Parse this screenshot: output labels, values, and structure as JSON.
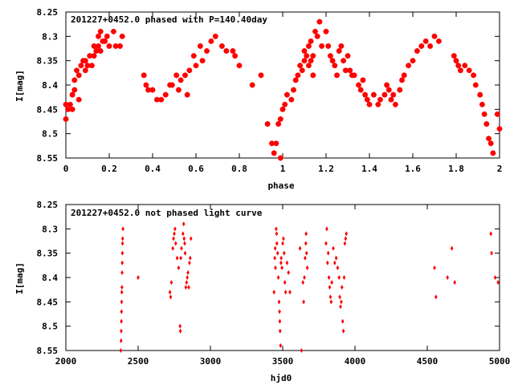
{
  "chart_data": [
    {
      "type": "scatter",
      "title": "201227+0452.0 phased with P=140.40day",
      "xlabel": "phase",
      "ylabel": "I[mag]",
      "xlim": [
        0,
        2
      ],
      "ylim": [
        8.25,
        8.55
      ],
      "y_inverted": true,
      "grid": false,
      "marker": "star",
      "color": "#ff0000",
      "xticks": [
        "0",
        "0.2",
        "0.4",
        "0.6",
        "0.8",
        "1",
        "1.2",
        "1.4",
        "1.6",
        "1.8",
        "2"
      ],
      "yticks": [
        "8.25",
        "8.3",
        "8.35",
        "8.4",
        "8.45",
        "8.5",
        "8.55"
      ],
      "points": [
        [
          0.0,
          8.44
        ],
        [
          0.0,
          8.47
        ],
        [
          0.01,
          8.45
        ],
        [
          0.02,
          8.44
        ],
        [
          0.03,
          8.45
        ],
        [
          0.03,
          8.42
        ],
        [
          0.04,
          8.41
        ],
        [
          0.04,
          8.39
        ],
        [
          0.05,
          8.37
        ],
        [
          0.06,
          8.43
        ],
        [
          0.06,
          8.38
        ],
        [
          0.07,
          8.36
        ],
        [
          0.08,
          8.35
        ],
        [
          0.09,
          8.37
        ],
        [
          0.09,
          8.35
        ],
        [
          0.1,
          8.36
        ],
        [
          0.11,
          8.34
        ],
        [
          0.12,
          8.36
        ],
        [
          0.13,
          8.32
        ],
        [
          0.13,
          8.34
        ],
        [
          0.14,
          8.33
        ],
        [
          0.15,
          8.3
        ],
        [
          0.15,
          8.32
        ],
        [
          0.16,
          8.29
        ],
        [
          0.16,
          8.33
        ],
        [
          0.17,
          8.31
        ],
        [
          0.18,
          8.31
        ],
        [
          0.19,
          8.3
        ],
        [
          0.2,
          8.32
        ],
        [
          0.22,
          8.29
        ],
        [
          0.23,
          8.32
        ],
        [
          0.25,
          8.32
        ],
        [
          0.26,
          8.3
        ],
        [
          0.36,
          8.38
        ],
        [
          0.37,
          8.4
        ],
        [
          0.38,
          8.41
        ],
        [
          0.4,
          8.41
        ],
        [
          0.42,
          8.43
        ],
        [
          0.44,
          8.43
        ],
        [
          0.46,
          8.42
        ],
        [
          0.48,
          8.4
        ],
        [
          0.49,
          8.4
        ],
        [
          0.51,
          8.38
        ],
        [
          0.52,
          8.41
        ],
        [
          0.53,
          8.39
        ],
        [
          0.55,
          8.38
        ],
        [
          0.56,
          8.42
        ],
        [
          0.57,
          8.37
        ],
        [
          0.59,
          8.34
        ],
        [
          0.6,
          8.36
        ],
        [
          0.62,
          8.32
        ],
        [
          0.63,
          8.35
        ],
        [
          0.65,
          8.33
        ],
        [
          0.67,
          8.31
        ],
        [
          0.69,
          8.3
        ],
        [
          0.72,
          8.32
        ],
        [
          0.74,
          8.33
        ],
        [
          0.77,
          8.33
        ],
        [
          0.78,
          8.34
        ],
        [
          0.8,
          8.36
        ],
        [
          0.86,
          8.4
        ],
        [
          0.9,
          8.38
        ],
        [
          0.93,
          8.48
        ],
        [
          0.95,
          8.52
        ],
        [
          0.96,
          8.54
        ],
        [
          0.97,
          8.52
        ],
        [
          0.98,
          8.48
        ],
        [
          0.99,
          8.47
        ],
        [
          0.99,
          8.55
        ],
        [
          1.0,
          8.45
        ],
        [
          1.01,
          8.44
        ],
        [
          1.02,
          8.42
        ],
        [
          1.04,
          8.43
        ],
        [
          1.05,
          8.41
        ],
        [
          1.06,
          8.39
        ],
        [
          1.07,
          8.38
        ],
        [
          1.08,
          8.36
        ],
        [
          1.09,
          8.37
        ],
        [
          1.1,
          8.35
        ],
        [
          1.1,
          8.33
        ],
        [
          1.11,
          8.34
        ],
        [
          1.12,
          8.32
        ],
        [
          1.12,
          8.36
        ],
        [
          1.13,
          8.31
        ],
        [
          1.13,
          8.35
        ],
        [
          1.14,
          8.34
        ],
        [
          1.14,
          8.38
        ],
        [
          1.15,
          8.29
        ],
        [
          1.16,
          8.3
        ],
        [
          1.17,
          8.27
        ],
        [
          1.18,
          8.32
        ],
        [
          1.2,
          8.29
        ],
        [
          1.21,
          8.32
        ],
        [
          1.22,
          8.34
        ],
        [
          1.23,
          8.35
        ],
        [
          1.24,
          8.36
        ],
        [
          1.25,
          8.38
        ],
        [
          1.26,
          8.33
        ],
        [
          1.27,
          8.32
        ],
        [
          1.28,
          8.35
        ],
        [
          1.29,
          8.37
        ],
        [
          1.3,
          8.34
        ],
        [
          1.31,
          8.37
        ],
        [
          1.32,
          8.38
        ],
        [
          1.33,
          8.38
        ],
        [
          1.35,
          8.4
        ],
        [
          1.36,
          8.41
        ],
        [
          1.37,
          8.39
        ],
        [
          1.38,
          8.42
        ],
        [
          1.39,
          8.43
        ],
        [
          1.4,
          8.44
        ],
        [
          1.42,
          8.42
        ],
        [
          1.44,
          8.44
        ],
        [
          1.45,
          8.43
        ],
        [
          1.47,
          8.42
        ],
        [
          1.48,
          8.4
        ],
        [
          1.49,
          8.41
        ],
        [
          1.5,
          8.43
        ],
        [
          1.51,
          8.42
        ],
        [
          1.52,
          8.44
        ],
        [
          1.54,
          8.41
        ],
        [
          1.55,
          8.39
        ],
        [
          1.56,
          8.38
        ],
        [
          1.58,
          8.36
        ],
        [
          1.6,
          8.35
        ],
        [
          1.62,
          8.33
        ],
        [
          1.64,
          8.32
        ],
        [
          1.66,
          8.31
        ],
        [
          1.68,
          8.32
        ],
        [
          1.7,
          8.3
        ],
        [
          1.72,
          8.31
        ],
        [
          1.79,
          8.34
        ],
        [
          1.8,
          8.35
        ],
        [
          1.81,
          8.36
        ],
        [
          1.82,
          8.37
        ],
        [
          1.84,
          8.36
        ],
        [
          1.86,
          8.37
        ],
        [
          1.88,
          8.38
        ],
        [
          1.89,
          8.4
        ],
        [
          1.91,
          8.42
        ],
        [
          1.92,
          8.44
        ],
        [
          1.93,
          8.46
        ],
        [
          1.94,
          8.48
        ],
        [
          1.95,
          8.51
        ],
        [
          1.96,
          8.52
        ],
        [
          1.97,
          8.54
        ],
        [
          1.99,
          8.46
        ],
        [
          2.0,
          8.49
        ]
      ]
    },
    {
      "type": "scatter",
      "title": "201227+0452.0 not phased light curve",
      "xlabel": "hjd0",
      "ylabel": "I[mag]",
      "xlim": [
        2000,
        5000
      ],
      "ylim": [
        8.25,
        8.55
      ],
      "y_inverted": true,
      "grid": false,
      "marker": "diamond",
      "color": "#ff0000",
      "xticks": [
        "2000",
        "2500",
        "3000",
        "3500",
        "4000",
        "4500",
        "5000"
      ],
      "yticks": [
        "8.25",
        "8.3",
        "8.35",
        "8.4",
        "8.45",
        "8.5",
        "8.55"
      ],
      "points": [
        [
          2380,
          8.55
        ],
        [
          2382,
          8.53
        ],
        [
          2383,
          8.51
        ],
        [
          2384,
          8.49
        ],
        [
          2385,
          8.47
        ],
        [
          2386,
          8.45
        ],
        [
          2387,
          8.43
        ],
        [
          2388,
          8.42
        ],
        [
          2389,
          8.39
        ],
        [
          2390,
          8.37
        ],
        [
          2391,
          8.35
        ],
        [
          2392,
          8.33
        ],
        [
          2393,
          8.32
        ],
        [
          2395,
          8.3
        ],
        [
          2500,
          8.4
        ],
        [
          2720,
          8.43
        ],
        [
          2725,
          8.44
        ],
        [
          2730,
          8.41
        ],
        [
          2740,
          8.34
        ],
        [
          2745,
          8.32
        ],
        [
          2750,
          8.31
        ],
        [
          2755,
          8.3
        ],
        [
          2760,
          8.33
        ],
        [
          2770,
          8.36
        ],
        [
          2780,
          8.38
        ],
        [
          2790,
          8.5
        ],
        [
          2792,
          8.51
        ],
        [
          2795,
          8.36
        ],
        [
          2800,
          8.34
        ],
        [
          2810,
          8.31
        ],
        [
          2815,
          8.29
        ],
        [
          2818,
          8.32
        ],
        [
          2822,
          8.33
        ],
        [
          2825,
          8.35
        ],
        [
          2830,
          8.42
        ],
        [
          2835,
          8.41
        ],
        [
          2840,
          8.4
        ],
        [
          2845,
          8.39
        ],
        [
          2850,
          8.42
        ],
        [
          2855,
          8.37
        ],
        [
          2860,
          8.36
        ],
        [
          2865,
          8.32
        ],
        [
          3440,
          8.43
        ],
        [
          3445,
          8.36
        ],
        [
          3448,
          8.34
        ],
        [
          3450,
          8.38
        ],
        [
          3455,
          8.3
        ],
        [
          3458,
          8.31
        ],
        [
          3460,
          8.33
        ],
        [
          3465,
          8.35
        ],
        [
          3470,
          8.4
        ],
        [
          3475,
          8.45
        ],
        [
          3478,
          8.47
        ],
        [
          3480,
          8.49
        ],
        [
          3482,
          8.51
        ],
        [
          3485,
          8.54
        ],
        [
          3488,
          8.37
        ],
        [
          3490,
          8.36
        ],
        [
          3495,
          8.38
        ],
        [
          3500,
          8.33
        ],
        [
          3505,
          8.32
        ],
        [
          3510,
          8.35
        ],
        [
          3515,
          8.41
        ],
        [
          3520,
          8.43
        ],
        [
          3530,
          8.37
        ],
        [
          3540,
          8.39
        ],
        [
          3550,
          8.43
        ],
        [
          3620,
          8.34
        ],
        [
          3630,
          8.55
        ],
        [
          3640,
          8.41
        ],
        [
          3645,
          8.45
        ],
        [
          3650,
          8.4
        ],
        [
          3655,
          8.36
        ],
        [
          3660,
          8.33
        ],
        [
          3662,
          8.31
        ],
        [
          3665,
          8.35
        ],
        [
          3670,
          8.38
        ],
        [
          3800,
          8.33
        ],
        [
          3805,
          8.3
        ],
        [
          3810,
          8.37
        ],
        [
          3815,
          8.35
        ],
        [
          3820,
          8.4
        ],
        [
          3825,
          8.42
        ],
        [
          3830,
          8.44
        ],
        [
          3835,
          8.45
        ],
        [
          3840,
          8.41
        ],
        [
          3850,
          8.34
        ],
        [
          3860,
          8.37
        ],
        [
          3870,
          8.36
        ],
        [
          3880,
          8.38
        ],
        [
          3890,
          8.4
        ],
        [
          3895,
          8.44
        ],
        [
          3900,
          8.46
        ],
        [
          3905,
          8.45
        ],
        [
          3910,
          8.42
        ],
        [
          3915,
          8.49
        ],
        [
          3920,
          8.51
        ],
        [
          3925,
          8.4
        ],
        [
          3930,
          8.33
        ],
        [
          3935,
          8.32
        ],
        [
          3940,
          8.31
        ],
        [
          4550,
          8.38
        ],
        [
          4560,
          8.44
        ],
        [
          4640,
          8.4
        ],
        [
          4670,
          8.34
        ],
        [
          4690,
          8.41
        ],
        [
          4940,
          8.31
        ],
        [
          4945,
          8.35
        ],
        [
          4970,
          8.4
        ],
        [
          4990,
          8.41
        ]
      ]
    }
  ]
}
